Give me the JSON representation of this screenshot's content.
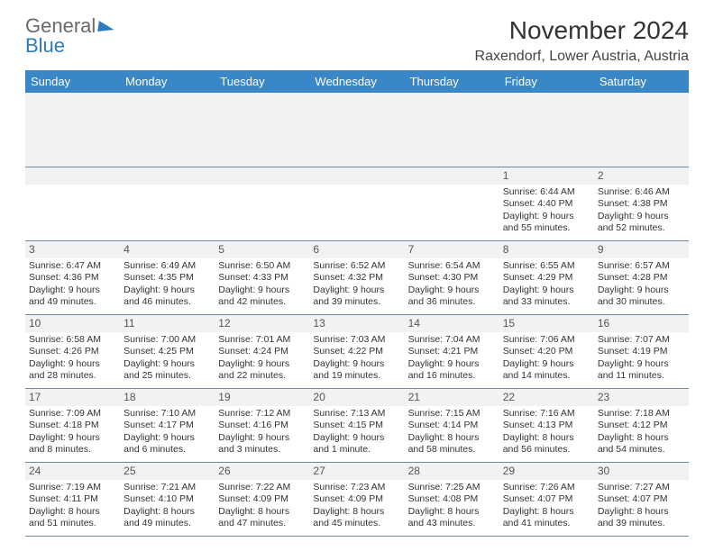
{
  "logo": {
    "word1": "General",
    "word2": "Blue"
  },
  "title": "November 2024",
  "location": "Raxendorf, Lower Austria, Austria",
  "header_bg": "#3a87c8",
  "header_fg": "#ffffff",
  "weekdays": [
    "Sunday",
    "Monday",
    "Tuesday",
    "Wednesday",
    "Thursday",
    "Friday",
    "Saturday"
  ],
  "weeks": [
    [
      null,
      null,
      null,
      null,
      null,
      {
        "n": "1",
        "sr": "Sunrise: 6:44 AM",
        "ss": "Sunset: 4:40 PM",
        "dl1": "Daylight: 9 hours",
        "dl2": "and 55 minutes."
      },
      {
        "n": "2",
        "sr": "Sunrise: 6:46 AM",
        "ss": "Sunset: 4:38 PM",
        "dl1": "Daylight: 9 hours",
        "dl2": "and 52 minutes."
      }
    ],
    [
      {
        "n": "3",
        "sr": "Sunrise: 6:47 AM",
        "ss": "Sunset: 4:36 PM",
        "dl1": "Daylight: 9 hours",
        "dl2": "and 49 minutes."
      },
      {
        "n": "4",
        "sr": "Sunrise: 6:49 AM",
        "ss": "Sunset: 4:35 PM",
        "dl1": "Daylight: 9 hours",
        "dl2": "and 46 minutes."
      },
      {
        "n": "5",
        "sr": "Sunrise: 6:50 AM",
        "ss": "Sunset: 4:33 PM",
        "dl1": "Daylight: 9 hours",
        "dl2": "and 42 minutes."
      },
      {
        "n": "6",
        "sr": "Sunrise: 6:52 AM",
        "ss": "Sunset: 4:32 PM",
        "dl1": "Daylight: 9 hours",
        "dl2": "and 39 minutes."
      },
      {
        "n": "7",
        "sr": "Sunrise: 6:54 AM",
        "ss": "Sunset: 4:30 PM",
        "dl1": "Daylight: 9 hours",
        "dl2": "and 36 minutes."
      },
      {
        "n": "8",
        "sr": "Sunrise: 6:55 AM",
        "ss": "Sunset: 4:29 PM",
        "dl1": "Daylight: 9 hours",
        "dl2": "and 33 minutes."
      },
      {
        "n": "9",
        "sr": "Sunrise: 6:57 AM",
        "ss": "Sunset: 4:28 PM",
        "dl1": "Daylight: 9 hours",
        "dl2": "and 30 minutes."
      }
    ],
    [
      {
        "n": "10",
        "sr": "Sunrise: 6:58 AM",
        "ss": "Sunset: 4:26 PM",
        "dl1": "Daylight: 9 hours",
        "dl2": "and 28 minutes."
      },
      {
        "n": "11",
        "sr": "Sunrise: 7:00 AM",
        "ss": "Sunset: 4:25 PM",
        "dl1": "Daylight: 9 hours",
        "dl2": "and 25 minutes."
      },
      {
        "n": "12",
        "sr": "Sunrise: 7:01 AM",
        "ss": "Sunset: 4:24 PM",
        "dl1": "Daylight: 9 hours",
        "dl2": "and 22 minutes."
      },
      {
        "n": "13",
        "sr": "Sunrise: 7:03 AM",
        "ss": "Sunset: 4:22 PM",
        "dl1": "Daylight: 9 hours",
        "dl2": "and 19 minutes."
      },
      {
        "n": "14",
        "sr": "Sunrise: 7:04 AM",
        "ss": "Sunset: 4:21 PM",
        "dl1": "Daylight: 9 hours",
        "dl2": "and 16 minutes."
      },
      {
        "n": "15",
        "sr": "Sunrise: 7:06 AM",
        "ss": "Sunset: 4:20 PM",
        "dl1": "Daylight: 9 hours",
        "dl2": "and 14 minutes."
      },
      {
        "n": "16",
        "sr": "Sunrise: 7:07 AM",
        "ss": "Sunset: 4:19 PM",
        "dl1": "Daylight: 9 hours",
        "dl2": "and 11 minutes."
      }
    ],
    [
      {
        "n": "17",
        "sr": "Sunrise: 7:09 AM",
        "ss": "Sunset: 4:18 PM",
        "dl1": "Daylight: 9 hours",
        "dl2": "and 8 minutes."
      },
      {
        "n": "18",
        "sr": "Sunrise: 7:10 AM",
        "ss": "Sunset: 4:17 PM",
        "dl1": "Daylight: 9 hours",
        "dl2": "and 6 minutes."
      },
      {
        "n": "19",
        "sr": "Sunrise: 7:12 AM",
        "ss": "Sunset: 4:16 PM",
        "dl1": "Daylight: 9 hours",
        "dl2": "and 3 minutes."
      },
      {
        "n": "20",
        "sr": "Sunrise: 7:13 AM",
        "ss": "Sunset: 4:15 PM",
        "dl1": "Daylight: 9 hours",
        "dl2": "and 1 minute."
      },
      {
        "n": "21",
        "sr": "Sunrise: 7:15 AM",
        "ss": "Sunset: 4:14 PM",
        "dl1": "Daylight: 8 hours",
        "dl2": "and 58 minutes."
      },
      {
        "n": "22",
        "sr": "Sunrise: 7:16 AM",
        "ss": "Sunset: 4:13 PM",
        "dl1": "Daylight: 8 hours",
        "dl2": "and 56 minutes."
      },
      {
        "n": "23",
        "sr": "Sunrise: 7:18 AM",
        "ss": "Sunset: 4:12 PM",
        "dl1": "Daylight: 8 hours",
        "dl2": "and 54 minutes."
      }
    ],
    [
      {
        "n": "24",
        "sr": "Sunrise: 7:19 AM",
        "ss": "Sunset: 4:11 PM",
        "dl1": "Daylight: 8 hours",
        "dl2": "and 51 minutes."
      },
      {
        "n": "25",
        "sr": "Sunrise: 7:21 AM",
        "ss": "Sunset: 4:10 PM",
        "dl1": "Daylight: 8 hours",
        "dl2": "and 49 minutes."
      },
      {
        "n": "26",
        "sr": "Sunrise: 7:22 AM",
        "ss": "Sunset: 4:09 PM",
        "dl1": "Daylight: 8 hours",
        "dl2": "and 47 minutes."
      },
      {
        "n": "27",
        "sr": "Sunrise: 7:23 AM",
        "ss": "Sunset: 4:09 PM",
        "dl1": "Daylight: 8 hours",
        "dl2": "and 45 minutes."
      },
      {
        "n": "28",
        "sr": "Sunrise: 7:25 AM",
        "ss": "Sunset: 4:08 PM",
        "dl1": "Daylight: 8 hours",
        "dl2": "and 43 minutes."
      },
      {
        "n": "29",
        "sr": "Sunrise: 7:26 AM",
        "ss": "Sunset: 4:07 PM",
        "dl1": "Daylight: 8 hours",
        "dl2": "and 41 minutes."
      },
      {
        "n": "30",
        "sr": "Sunrise: 7:27 AM",
        "ss": "Sunset: 4:07 PM",
        "dl1": "Daylight: 8 hours",
        "dl2": "and 39 minutes."
      }
    ]
  ]
}
